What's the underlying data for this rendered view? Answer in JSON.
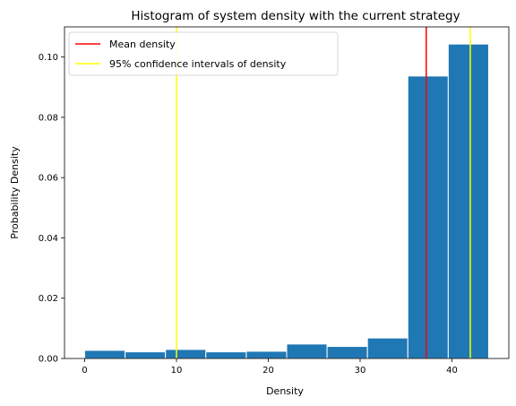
{
  "chart_data": {
    "type": "bar",
    "title": "Histogram of system density with the current strategy",
    "xlabel": "Density",
    "ylabel": "Probability Density",
    "xlim": [
      -2.2,
      46.2
    ],
    "ylim": [
      0,
      0.11
    ],
    "x_ticks": [
      0,
      10,
      20,
      30,
      40
    ],
    "y_ticks": [
      0.0,
      0.02,
      0.04,
      0.06,
      0.08,
      0.1
    ],
    "y_tick_labels": [
      "0.00",
      "0.02",
      "0.04",
      "0.06",
      "0.08",
      "0.10"
    ],
    "bin_edges": [
      0,
      4.4,
      8.8,
      13.2,
      17.6,
      22.0,
      26.4,
      30.8,
      35.2,
      39.6,
      44.0
    ],
    "values": [
      0.0027,
      0.0022,
      0.003,
      0.0022,
      0.0024,
      0.0048,
      0.004,
      0.0068,
      0.0937,
      0.1043
    ],
    "bar_color": "#1f77b4",
    "bar_edge_color": "#ffffff",
    "lines": [
      {
        "name": "Mean density",
        "x": 37.2,
        "color": "#ff0000"
      },
      {
        "name": "95% confidence intervals of density",
        "x": 10.0,
        "color": "#ffff00"
      },
      {
        "name": "95% confidence intervals of density",
        "x": 42.0,
        "color": "#ffff00"
      }
    ],
    "legend": {
      "placement": "top-left",
      "entries": [
        {
          "label": "Mean density",
          "color": "#ff0000"
        },
        {
          "label": "95% confidence intervals of density",
          "color": "#ffff00"
        }
      ]
    },
    "grid": false
  }
}
